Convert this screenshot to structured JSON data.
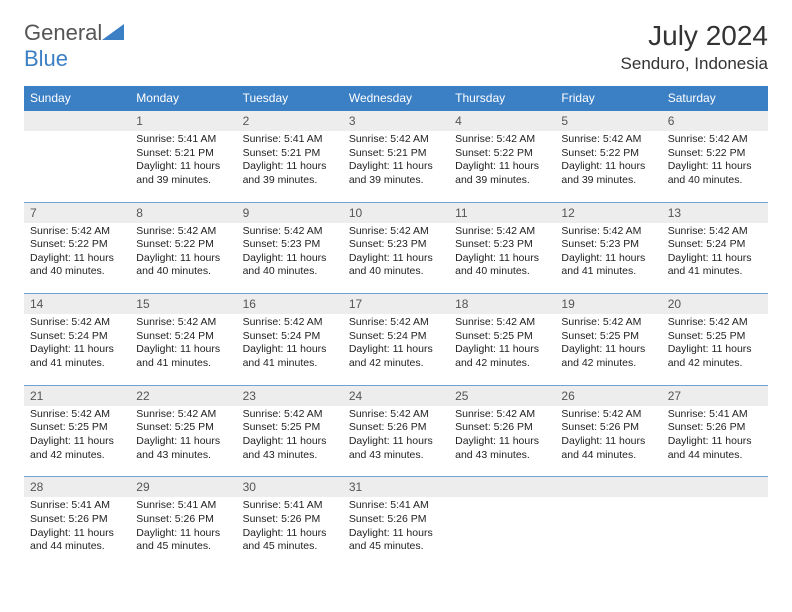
{
  "logo": {
    "word1": "General",
    "word2": "Blue"
  },
  "title": "July 2024",
  "location": "Senduro, Indonesia",
  "colors": {
    "header_blue": "#3b7fc4",
    "daynum_bg": "#ededed",
    "row_border": "#6ea3d4",
    "text": "#333333",
    "detail_text": "#222222"
  },
  "weekdays": [
    "Sunday",
    "Monday",
    "Tuesday",
    "Wednesday",
    "Thursday",
    "Friday",
    "Saturday"
  ],
  "weeks": [
    {
      "nums": [
        "",
        "1",
        "2",
        "3",
        "4",
        "5",
        "6"
      ],
      "details": [
        null,
        {
          "sunrise": "Sunrise: 5:41 AM",
          "sunset": "Sunset: 5:21 PM",
          "daylight": "Daylight: 11 hours and 39 minutes."
        },
        {
          "sunrise": "Sunrise: 5:41 AM",
          "sunset": "Sunset: 5:21 PM",
          "daylight": "Daylight: 11 hours and 39 minutes."
        },
        {
          "sunrise": "Sunrise: 5:42 AM",
          "sunset": "Sunset: 5:21 PM",
          "daylight": "Daylight: 11 hours and 39 minutes."
        },
        {
          "sunrise": "Sunrise: 5:42 AM",
          "sunset": "Sunset: 5:22 PM",
          "daylight": "Daylight: 11 hours and 39 minutes."
        },
        {
          "sunrise": "Sunrise: 5:42 AM",
          "sunset": "Sunset: 5:22 PM",
          "daylight": "Daylight: 11 hours and 39 minutes."
        },
        {
          "sunrise": "Sunrise: 5:42 AM",
          "sunset": "Sunset: 5:22 PM",
          "daylight": "Daylight: 11 hours and 40 minutes."
        }
      ]
    },
    {
      "nums": [
        "7",
        "8",
        "9",
        "10",
        "11",
        "12",
        "13"
      ],
      "details": [
        {
          "sunrise": "Sunrise: 5:42 AM",
          "sunset": "Sunset: 5:22 PM",
          "daylight": "Daylight: 11 hours and 40 minutes."
        },
        {
          "sunrise": "Sunrise: 5:42 AM",
          "sunset": "Sunset: 5:22 PM",
          "daylight": "Daylight: 11 hours and 40 minutes."
        },
        {
          "sunrise": "Sunrise: 5:42 AM",
          "sunset": "Sunset: 5:23 PM",
          "daylight": "Daylight: 11 hours and 40 minutes."
        },
        {
          "sunrise": "Sunrise: 5:42 AM",
          "sunset": "Sunset: 5:23 PM",
          "daylight": "Daylight: 11 hours and 40 minutes."
        },
        {
          "sunrise": "Sunrise: 5:42 AM",
          "sunset": "Sunset: 5:23 PM",
          "daylight": "Daylight: 11 hours and 40 minutes."
        },
        {
          "sunrise": "Sunrise: 5:42 AM",
          "sunset": "Sunset: 5:23 PM",
          "daylight": "Daylight: 11 hours and 41 minutes."
        },
        {
          "sunrise": "Sunrise: 5:42 AM",
          "sunset": "Sunset: 5:24 PM",
          "daylight": "Daylight: 11 hours and 41 minutes."
        }
      ]
    },
    {
      "nums": [
        "14",
        "15",
        "16",
        "17",
        "18",
        "19",
        "20"
      ],
      "details": [
        {
          "sunrise": "Sunrise: 5:42 AM",
          "sunset": "Sunset: 5:24 PM",
          "daylight": "Daylight: 11 hours and 41 minutes."
        },
        {
          "sunrise": "Sunrise: 5:42 AM",
          "sunset": "Sunset: 5:24 PM",
          "daylight": "Daylight: 11 hours and 41 minutes."
        },
        {
          "sunrise": "Sunrise: 5:42 AM",
          "sunset": "Sunset: 5:24 PM",
          "daylight": "Daylight: 11 hours and 41 minutes."
        },
        {
          "sunrise": "Sunrise: 5:42 AM",
          "sunset": "Sunset: 5:24 PM",
          "daylight": "Daylight: 11 hours and 42 minutes."
        },
        {
          "sunrise": "Sunrise: 5:42 AM",
          "sunset": "Sunset: 5:25 PM",
          "daylight": "Daylight: 11 hours and 42 minutes."
        },
        {
          "sunrise": "Sunrise: 5:42 AM",
          "sunset": "Sunset: 5:25 PM",
          "daylight": "Daylight: 11 hours and 42 minutes."
        },
        {
          "sunrise": "Sunrise: 5:42 AM",
          "sunset": "Sunset: 5:25 PM",
          "daylight": "Daylight: 11 hours and 42 minutes."
        }
      ]
    },
    {
      "nums": [
        "21",
        "22",
        "23",
        "24",
        "25",
        "26",
        "27"
      ],
      "details": [
        {
          "sunrise": "Sunrise: 5:42 AM",
          "sunset": "Sunset: 5:25 PM",
          "daylight": "Daylight: 11 hours and 42 minutes."
        },
        {
          "sunrise": "Sunrise: 5:42 AM",
          "sunset": "Sunset: 5:25 PM",
          "daylight": "Daylight: 11 hours and 43 minutes."
        },
        {
          "sunrise": "Sunrise: 5:42 AM",
          "sunset": "Sunset: 5:25 PM",
          "daylight": "Daylight: 11 hours and 43 minutes."
        },
        {
          "sunrise": "Sunrise: 5:42 AM",
          "sunset": "Sunset: 5:26 PM",
          "daylight": "Daylight: 11 hours and 43 minutes."
        },
        {
          "sunrise": "Sunrise: 5:42 AM",
          "sunset": "Sunset: 5:26 PM",
          "daylight": "Daylight: 11 hours and 43 minutes."
        },
        {
          "sunrise": "Sunrise: 5:42 AM",
          "sunset": "Sunset: 5:26 PM",
          "daylight": "Daylight: 11 hours and 44 minutes."
        },
        {
          "sunrise": "Sunrise: 5:41 AM",
          "sunset": "Sunset: 5:26 PM",
          "daylight": "Daylight: 11 hours and 44 minutes."
        }
      ]
    },
    {
      "nums": [
        "28",
        "29",
        "30",
        "31",
        "",
        "",
        ""
      ],
      "details": [
        {
          "sunrise": "Sunrise: 5:41 AM",
          "sunset": "Sunset: 5:26 PM",
          "daylight": "Daylight: 11 hours and 44 minutes."
        },
        {
          "sunrise": "Sunrise: 5:41 AM",
          "sunset": "Sunset: 5:26 PM",
          "daylight": "Daylight: 11 hours and 45 minutes."
        },
        {
          "sunrise": "Sunrise: 5:41 AM",
          "sunset": "Sunset: 5:26 PM",
          "daylight": "Daylight: 11 hours and 45 minutes."
        },
        {
          "sunrise": "Sunrise: 5:41 AM",
          "sunset": "Sunset: 5:26 PM",
          "daylight": "Daylight: 11 hours and 45 minutes."
        },
        null,
        null,
        null
      ]
    }
  ]
}
